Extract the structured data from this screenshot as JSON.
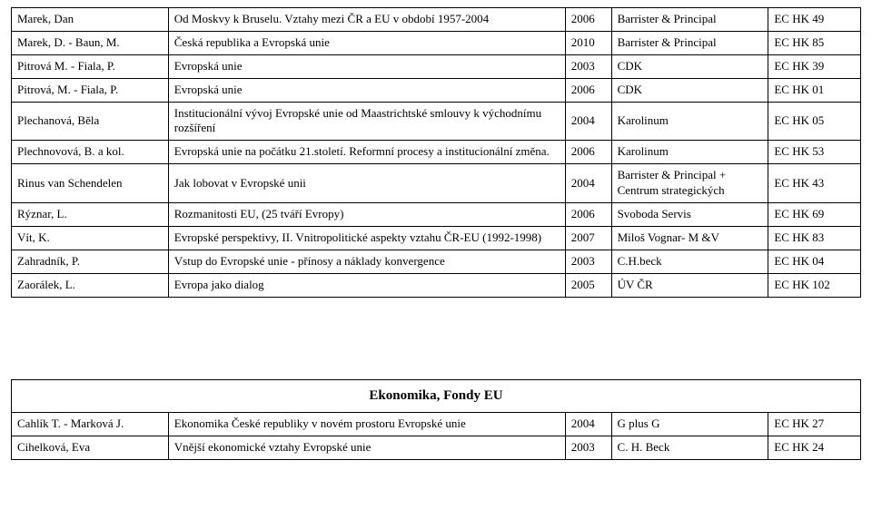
{
  "tables": {
    "top": {
      "rows": [
        {
          "author": "Marek, Dan",
          "title": "Od Moskvy k Bruselu. Vztahy mezi ČR a EU v období 1957-2004",
          "year": "2006",
          "publisher": "Barrister & Principal",
          "code": "EC HK 49"
        },
        {
          "author": "Marek, D. - Baun, M.",
          "title": "Česká republika a Evropská unie",
          "year": "2010",
          "publisher": "Barrister & Principal",
          "code": "EC HK 85"
        },
        {
          "author": "Pitrová M. - Fiala, P.",
          "title": "Evropská unie",
          "year": "2003",
          "publisher": "CDK",
          "code": "EC HK 39"
        },
        {
          "author": "Pitrová, M. - Fiala, P.",
          "title": "Evropská unie",
          "year": "2006",
          "publisher": "CDK",
          "code": "EC HK 01"
        },
        {
          "author": "Plechanová, Běla",
          "title": "Institucionální vývoj Evropské unie od Maastrichtské smlouvy k východnímu rozšíření",
          "year": "2004",
          "publisher": "Karolinum",
          "code": "EC HK 05"
        },
        {
          "author": "Plechnovová, B. a kol.",
          "title": "Evropská unie na počátku 21.století. Reformní procesy a institucionální změna.",
          "year": "2006",
          "publisher": "Karolinum",
          "code": "EC HK 53"
        },
        {
          "author": "Rinus van Schendelen",
          "title": "Jak lobovat v Evropské unii",
          "year": "2004",
          "publisher": "Barrister & Principal + Centrum strategických",
          "code": "EC HK 43"
        },
        {
          "author": "Rýznar, L.",
          "title": "Rozmanitosti EU, (25 tváří Evropy)",
          "year": "2006",
          "publisher": "Svoboda Servis",
          "code": "EC HK 69"
        },
        {
          "author": "Vít, K.",
          "title": "Evropské perspektivy, II. Vnitropolitické aspekty vztahu ČR-EU (1992-1998)",
          "year": "2007",
          "publisher": "Miloš Vognar- M &V",
          "code": "EC HK 83"
        },
        {
          "author": "Zahradník, P.",
          "title": "Vstup do Evropské unie - přínosy a náklady konvergence",
          "year": "2003",
          "publisher": "C.H.beck",
          "code": "EC HK 04"
        },
        {
          "author": "Zaorálek, L.",
          "title": "Evropa jako dialog",
          "year": "2005",
          "publisher": "ÚV ČR",
          "code": "EC HK 102"
        }
      ]
    },
    "bottom": {
      "heading": "Ekonomika, Fondy EU",
      "rows": [
        {
          "author": "Cahlík T. - Marková J.",
          "title": "Ekonomika České republiky v novém prostoru Evropské unie",
          "year": "2004",
          "publisher": "G plus G",
          "code": "EC HK 27"
        },
        {
          "author": "Cihelková, Eva",
          "title": "Vnější ekonomické vztahy Evropské unie",
          "year": "2003",
          "publisher": "C. H. Beck",
          "code": "EC HK 24"
        }
      ]
    }
  },
  "style": {
    "font_family": "Times New Roman",
    "font_size_pt": 10,
    "heading_font_size_pt": 12,
    "border_color": "#000000",
    "background_color": "#ffffff",
    "text_color": "#000000"
  }
}
